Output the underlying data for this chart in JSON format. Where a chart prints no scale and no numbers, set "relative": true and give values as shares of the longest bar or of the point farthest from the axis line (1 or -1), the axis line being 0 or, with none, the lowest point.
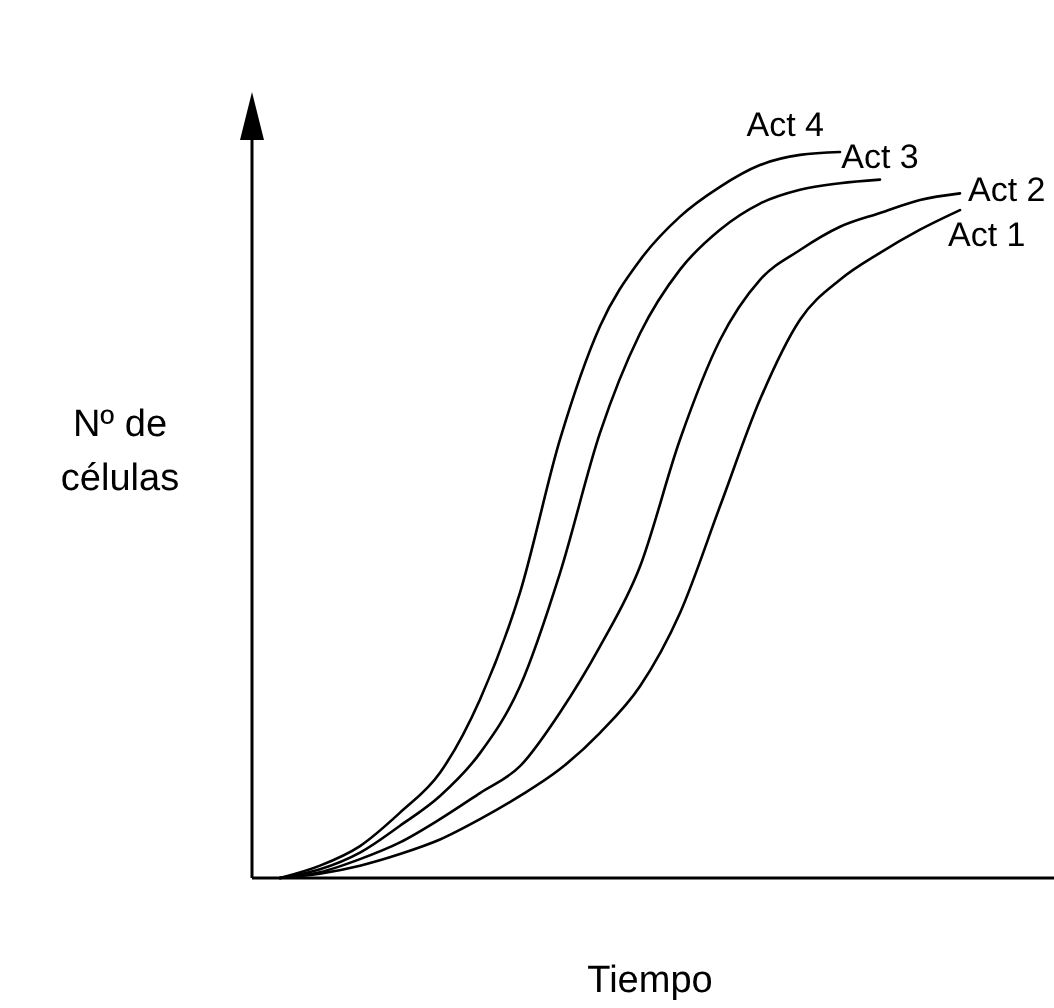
{
  "chart_data": {
    "type": "line",
    "relative": true,
    "xlabel": "Tiempo",
    "ylabel": "Nº de células",
    "categories": [
      null,
      null,
      null,
      null,
      null,
      null,
      null,
      null,
      null,
      null,
      null,
      null,
      null,
      null,
      null,
      null,
      null,
      null
    ],
    "series": [
      {
        "name": "Act 4",
        "color": "#000000",
        "values": [
          0,
          0.017,
          0.044,
          0.09,
          0.145,
          0.246,
          0.393,
          0.604,
          0.76,
          0.851,
          0.911,
          0.952,
          0.982,
          0.996,
          1,
          null,
          null,
          null
        ]
      },
      {
        "name": "Act 3",
        "color": "#000000",
        "values": [
          0,
          0.012,
          0.035,
          0.072,
          0.113,
          0.172,
          0.264,
          0.42,
          0.613,
          0.75,
          0.838,
          0.893,
          0.929,
          0.948,
          0.957,
          0.962,
          null,
          null
        ]
      },
      {
        "name": "Act 2",
        "color": "#000000",
        "values": [
          0,
          0.008,
          0.026,
          0.049,
          0.081,
          0.117,
          0.154,
          0.228,
          0.319,
          0.429,
          0.604,
          0.741,
          0.824,
          0.865,
          0.897,
          0.916,
          0.934,
          0.943
        ]
      },
      {
        "name": "Act 1",
        "color": "#000000",
        "values": [
          0,
          0.006,
          0.017,
          0.033,
          0.053,
          0.081,
          0.113,
          0.15,
          0.2,
          0.264,
          0.365,
          0.512,
          0.659,
          0.769,
          0.824,
          0.861,
          0.893,
          0.92
        ]
      }
    ]
  }
}
